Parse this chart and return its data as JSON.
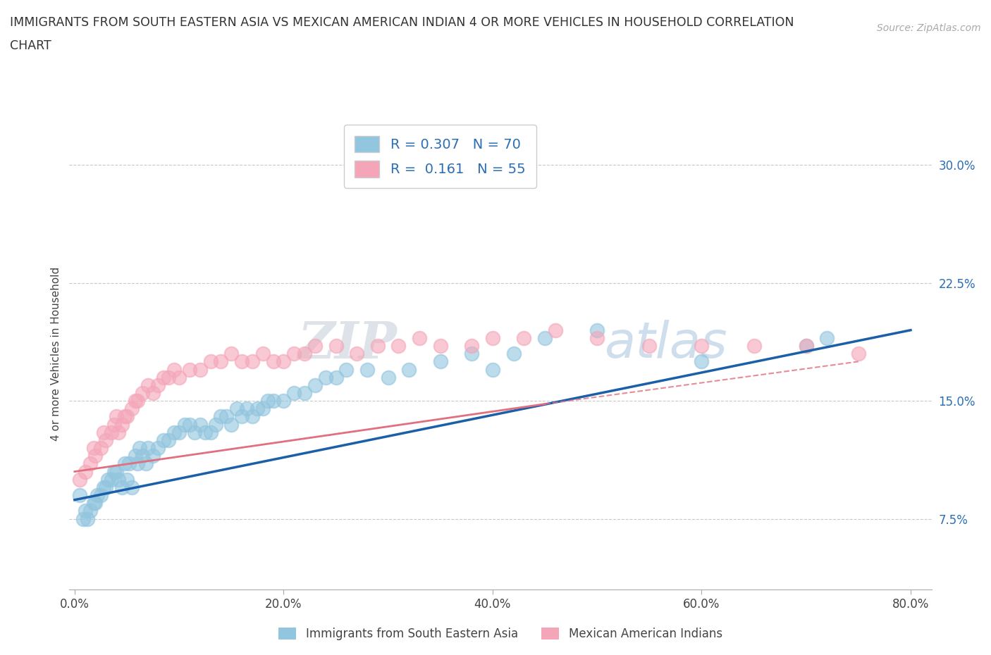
{
  "title_line1": "IMMIGRANTS FROM SOUTH EASTERN ASIA VS MEXICAN AMERICAN INDIAN 4 OR MORE VEHICLES IN HOUSEHOLD CORRELATION",
  "title_line2": "CHART",
  "source_text": "Source: ZipAtlas.com",
  "ylabel": "4 or more Vehicles in Household",
  "xlim": [
    -0.005,
    0.82
  ],
  "ylim": [
    0.03,
    0.33
  ],
  "xtick_labels": [
    "0.0%",
    "20.0%",
    "40.0%",
    "60.0%",
    "80.0%"
  ],
  "xtick_values": [
    0.0,
    0.2,
    0.4,
    0.6,
    0.8
  ],
  "ytick_labels": [
    "7.5%",
    "15.0%",
    "22.5%",
    "30.0%"
  ],
  "ytick_values": [
    0.075,
    0.15,
    0.225,
    0.3
  ],
  "legend_labels": [
    "Immigrants from South Eastern Asia",
    "Mexican American Indians"
  ],
  "R_blue": "0.307",
  "N_blue": 70,
  "R_pink": "0.161",
  "N_pink": 55,
  "color_blue": "#92c5de",
  "color_pink": "#f4a6b8",
  "line_color_blue": "#1a5fa8",
  "line_color_pink": "#e07080",
  "watermark": "ZIPatlas",
  "blue_x": [
    0.005,
    0.008,
    0.01,
    0.012,
    0.015,
    0.018,
    0.02,
    0.022,
    0.025,
    0.028,
    0.03,
    0.032,
    0.035,
    0.038,
    0.04,
    0.042,
    0.045,
    0.048,
    0.05,
    0.052,
    0.055,
    0.058,
    0.06,
    0.062,
    0.065,
    0.068,
    0.07,
    0.075,
    0.08,
    0.085,
    0.09,
    0.095,
    0.1,
    0.105,
    0.11,
    0.115,
    0.12,
    0.125,
    0.13,
    0.135,
    0.14,
    0.145,
    0.15,
    0.155,
    0.16,
    0.165,
    0.17,
    0.175,
    0.18,
    0.185,
    0.19,
    0.2,
    0.21,
    0.22,
    0.23,
    0.24,
    0.25,
    0.26,
    0.28,
    0.3,
    0.32,
    0.35,
    0.38,
    0.4,
    0.42,
    0.45,
    0.5,
    0.6,
    0.7,
    0.72
  ],
  "blue_y": [
    0.09,
    0.075,
    0.08,
    0.075,
    0.08,
    0.085,
    0.085,
    0.09,
    0.09,
    0.095,
    0.095,
    0.1,
    0.1,
    0.105,
    0.105,
    0.1,
    0.095,
    0.11,
    0.1,
    0.11,
    0.095,
    0.115,
    0.11,
    0.12,
    0.115,
    0.11,
    0.12,
    0.115,
    0.12,
    0.125,
    0.125,
    0.13,
    0.13,
    0.135,
    0.135,
    0.13,
    0.135,
    0.13,
    0.13,
    0.135,
    0.14,
    0.14,
    0.135,
    0.145,
    0.14,
    0.145,
    0.14,
    0.145,
    0.145,
    0.15,
    0.15,
    0.15,
    0.155,
    0.155,
    0.16,
    0.165,
    0.165,
    0.17,
    0.17,
    0.165,
    0.17,
    0.175,
    0.18,
    0.17,
    0.18,
    0.19,
    0.195,
    0.175,
    0.185,
    0.19
  ],
  "pink_x": [
    0.005,
    0.01,
    0.015,
    0.018,
    0.02,
    0.025,
    0.028,
    0.03,
    0.035,
    0.038,
    0.04,
    0.042,
    0.045,
    0.048,
    0.05,
    0.055,
    0.058,
    0.06,
    0.065,
    0.07,
    0.075,
    0.08,
    0.085,
    0.09,
    0.095,
    0.1,
    0.11,
    0.12,
    0.13,
    0.14,
    0.15,
    0.16,
    0.17,
    0.18,
    0.19,
    0.2,
    0.21,
    0.22,
    0.23,
    0.25,
    0.27,
    0.29,
    0.31,
    0.33,
    0.35,
    0.38,
    0.4,
    0.43,
    0.46,
    0.5,
    0.55,
    0.6,
    0.65,
    0.7,
    0.75
  ],
  "pink_y": [
    0.1,
    0.105,
    0.11,
    0.12,
    0.115,
    0.12,
    0.13,
    0.125,
    0.13,
    0.135,
    0.14,
    0.13,
    0.135,
    0.14,
    0.14,
    0.145,
    0.15,
    0.15,
    0.155,
    0.16,
    0.155,
    0.16,
    0.165,
    0.165,
    0.17,
    0.165,
    0.17,
    0.17,
    0.175,
    0.175,
    0.18,
    0.175,
    0.175,
    0.18,
    0.175,
    0.175,
    0.18,
    0.18,
    0.185,
    0.185,
    0.18,
    0.185,
    0.185,
    0.19,
    0.185,
    0.185,
    0.19,
    0.19,
    0.195,
    0.19,
    0.185,
    0.185,
    0.185,
    0.185,
    0.18
  ]
}
